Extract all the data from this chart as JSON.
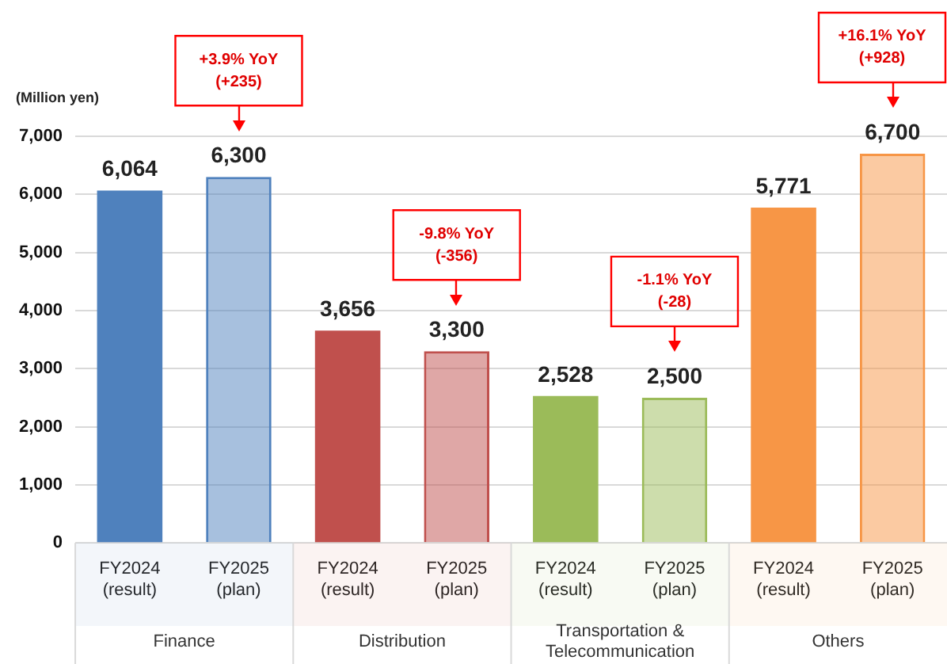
{
  "chart_data": {
    "type": "bar",
    "ylabel": "(Million yen)",
    "categories": [
      "FY2024\n(result)",
      "FY2025\n(plan)",
      "FY2024\n(result)",
      "FY2025\n(plan)",
      "FY2024\n(result)",
      "FY2025\n(plan)",
      "FY2024\n(result)",
      "FY2025\n(plan)"
    ],
    "values": [
      6064,
      6300,
      3656,
      3300,
      2528,
      2500,
      5771,
      6700
    ],
    "colors": [
      "#4f81bd",
      "#4f81bd",
      "#c0504d",
      "#c0504d",
      "#9bbb59",
      "#9bbb59",
      "#f79646",
      "#f79646"
    ],
    "ylim": [
      0,
      7000
    ],
    "yticks": [
      {
        "value": 0,
        "label": "0"
      },
      {
        "value": 1000,
        "label": "1,000"
      },
      {
        "value": 2000,
        "label": "2,000"
      },
      {
        "value": 3000,
        "label": "3,000"
      },
      {
        "value": 4000,
        "label": "4,000"
      },
      {
        "value": 5000,
        "label": "5,000"
      },
      {
        "value": 6000,
        "label": "6,000"
      },
      {
        "value": 7000,
        "label": "7,000"
      }
    ],
    "grid": "y",
    "data_labels": true,
    "value_labels": [
      "6,064",
      "6,300",
      "3,656",
      "3,300",
      "2,528",
      "2,500",
      "5,771",
      "6,700"
    ],
    "annotations": [
      "Finance",
      "Distribution",
      "Transportation & Telecommunication",
      "Others",
      "+3.9% YoY\n(+235)",
      "-9.8% YoY\n(-356)",
      "-1.1% YoY\n(-28)",
      "+16.1% YoY\n(+928)"
    ]
  }
}
